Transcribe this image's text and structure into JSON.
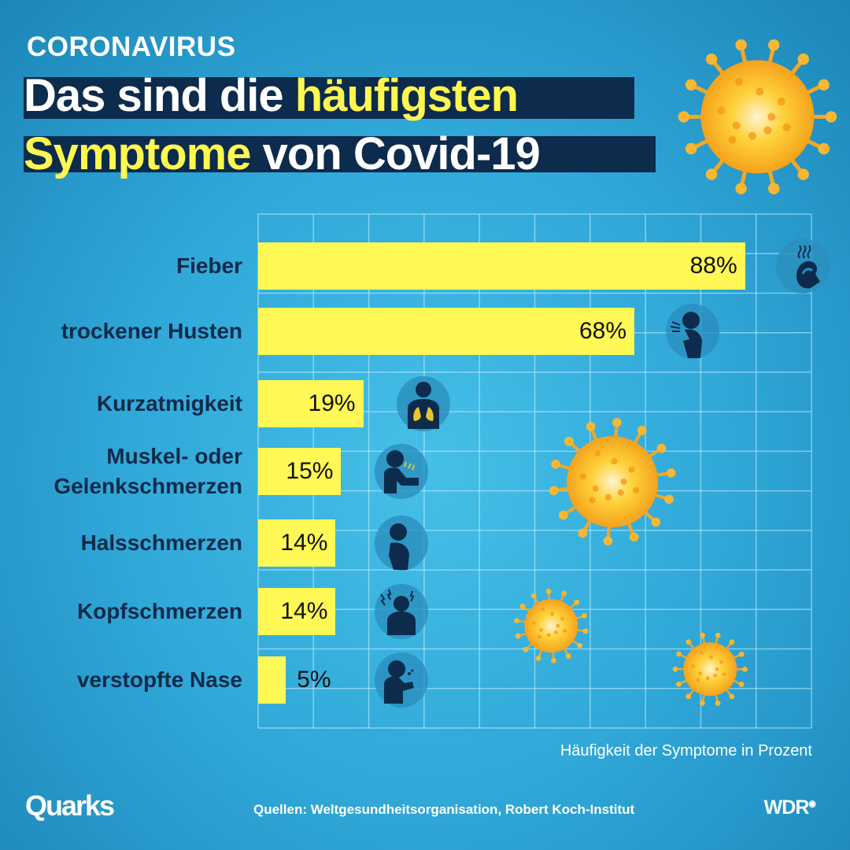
{
  "header": {
    "kicker": "CORONAVIRUS",
    "title_line1_white": "Das sind die ",
    "title_line1_yellow": "häufigsten",
    "title_line2_yellow": "Symptome",
    "title_line2_white": " von Covid-19"
  },
  "chart_data": {
    "type": "bar",
    "orientation": "horizontal",
    "title": "Das sind die häufigsten Symptome von Covid-19",
    "xlabel": "Häufigkeit der Symptome in Prozent",
    "xlim": [
      0,
      100
    ],
    "grid": true,
    "categories": [
      "Fieber",
      "trockener Husten",
      "Kurzatmigkeit",
      "Muskel- oder Gelenkschmerzen",
      "Halsschmerzen",
      "Kopfschmerzen",
      "verstopfte Nase"
    ],
    "category_lines": [
      [
        "Fieber"
      ],
      [
        "trockener Husten"
      ],
      [
        "Kurzatmigkeit"
      ],
      [
        "Muskel- oder",
        "Gelenkschmerzen"
      ],
      [
        "Halsschmerzen"
      ],
      [
        "Kopfschmerzen"
      ],
      [
        "verstopfte Nase"
      ]
    ],
    "values": [
      88,
      68,
      19,
      15,
      14,
      14,
      5
    ],
    "value_labels": [
      "88%",
      "68%",
      "19%",
      "15%",
      "14%",
      "14%",
      "5%"
    ],
    "icons": [
      "fever-thermometer-icon",
      "dry-cough-icon",
      "shortness-of-breath-lungs-icon",
      "muscle-joint-pain-icon",
      "sore-throat-icon",
      "headache-icon",
      "stuffy-nose-icon"
    ]
  },
  "colors": {
    "bar": "#fff855",
    "navy": "#0d2b4c",
    "background": "#30a8d8"
  },
  "footer": {
    "brand_left": "Quarks",
    "sources": "Quellen: Weltgesundheitsorganisation, Robert Koch-Institut",
    "brand_right": "WDR"
  }
}
